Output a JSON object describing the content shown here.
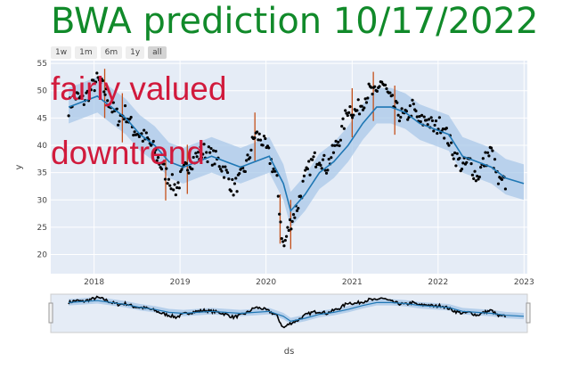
{
  "title": "BWA prediction 10/17/2022",
  "range_buttons": [
    "1w",
    "1m",
    "6m",
    "1y",
    "all"
  ],
  "range_active": "all",
  "colors": {
    "title": "#118a2a",
    "annotation": "#d11a3c",
    "forecast_line": "#1f77b4",
    "band": "#a9c8e8",
    "points": "#000000",
    "changepoints": "#c4501a",
    "plot_bg": "#e5ecf6"
  },
  "chart_data": {
    "type": "scatter",
    "title": "BWA prediction 10/17/2022",
    "xlabel": "ds",
    "ylabel": "y",
    "xlim": [
      "2017-07-01",
      "2023-01-15"
    ],
    "ylim": [
      16.5,
      55.5
    ],
    "grid": true,
    "x_ticks": [
      "2018",
      "2019",
      "2020",
      "2021",
      "2022",
      "2023"
    ],
    "y_ticks": [
      20,
      25,
      30,
      35,
      40,
      45,
      50,
      55
    ],
    "annotations": [
      "fairly valued",
      "downtrend"
    ],
    "observed_series": {
      "dates": [
        "2017-09-15",
        "2017-10-15",
        "2017-11-15",
        "2017-12-15",
        "2018-01-15",
        "2018-02-15",
        "2018-03-15",
        "2018-04-15",
        "2018-05-15",
        "2018-06-15",
        "2018-07-15",
        "2018-08-15",
        "2018-09-15",
        "2018-10-15",
        "2018-11-15",
        "2018-12-15",
        "2019-01-15",
        "2019-02-15",
        "2019-03-15",
        "2019-04-15",
        "2019-05-15",
        "2019-06-15",
        "2019-07-15",
        "2019-08-15",
        "2019-09-15",
        "2019-10-15",
        "2019-11-15",
        "2019-12-15",
        "2020-01-15",
        "2020-02-15",
        "2020-03-01",
        "2020-03-15",
        "2020-04-01",
        "2020-04-15",
        "2020-05-15",
        "2020-06-15",
        "2020-07-15",
        "2020-08-15",
        "2020-09-15",
        "2020-10-15",
        "2020-11-15",
        "2020-12-15",
        "2021-01-15",
        "2021-02-15",
        "2021-03-15",
        "2021-04-15",
        "2021-05-01",
        "2021-05-15",
        "2021-06-15",
        "2021-07-15",
        "2021-08-15",
        "2021-09-15",
        "2021-10-15",
        "2021-11-15",
        "2021-12-15",
        "2022-01-15",
        "2022-02-15",
        "2022-03-15",
        "2022-04-15",
        "2022-05-15",
        "2022-06-15",
        "2022-07-15",
        "2022-08-15",
        "2022-09-15",
        "2022-10-14"
      ],
      "values": [
        47,
        49,
        48,
        50,
        52,
        50,
        47,
        45,
        46,
        43,
        42,
        41,
        39,
        36,
        34,
        32,
        35,
        37,
        38,
        39,
        38,
        37,
        35,
        32,
        34,
        37,
        42,
        41,
        38,
        34,
        27,
        21,
        24,
        26,
        29,
        34,
        37,
        38,
        36,
        39,
        42,
        47,
        46,
        48,
        50,
        49,
        52,
        51,
        48,
        46,
        45,
        47,
        44,
        45,
        43,
        44,
        41,
        38,
        36,
        37,
        34,
        37,
        39,
        33,
        33
      ]
    },
    "forecast_series": {
      "name": "yhat",
      "dates": [
        "2017-09-15",
        "2017-11-15",
        "2018-01-15",
        "2018-03-15",
        "2018-05-15",
        "2018-07-15",
        "2018-09-15",
        "2018-11-15",
        "2019-01-15",
        "2019-03-15",
        "2019-05-15",
        "2019-07-15",
        "2019-09-15",
        "2019-11-15",
        "2020-01-15",
        "2020-03-15",
        "2020-04-15",
        "2020-06-15",
        "2020-08-15",
        "2020-10-15",
        "2020-12-15",
        "2021-02-15",
        "2021-04-15",
        "2021-06-15",
        "2021-08-15",
        "2021-10-15",
        "2021-12-15",
        "2022-02-15",
        "2022-04-15",
        "2022-06-15",
        "2022-08-15",
        "2022-10-15",
        "2022-12-31"
      ],
      "values": [
        47,
        48,
        49,
        47,
        45,
        42,
        40,
        37,
        36,
        37,
        38,
        37,
        36,
        37,
        38,
        33,
        28,
        31,
        35,
        37,
        40,
        44,
        47,
        47,
        46,
        44,
        43,
        42,
        38,
        37,
        36,
        34,
        33
      ],
      "band": [
        3,
        3.5
      ]
    },
    "changepoints": [
      "2018-02-15",
      "2018-05-01",
      "2018-11-01",
      "2019-02-01",
      "2019-11-15",
      "2020-03-01",
      "2020-04-15",
      "2021-01-01",
      "2021-04-01",
      "2021-07-01"
    ]
  }
}
